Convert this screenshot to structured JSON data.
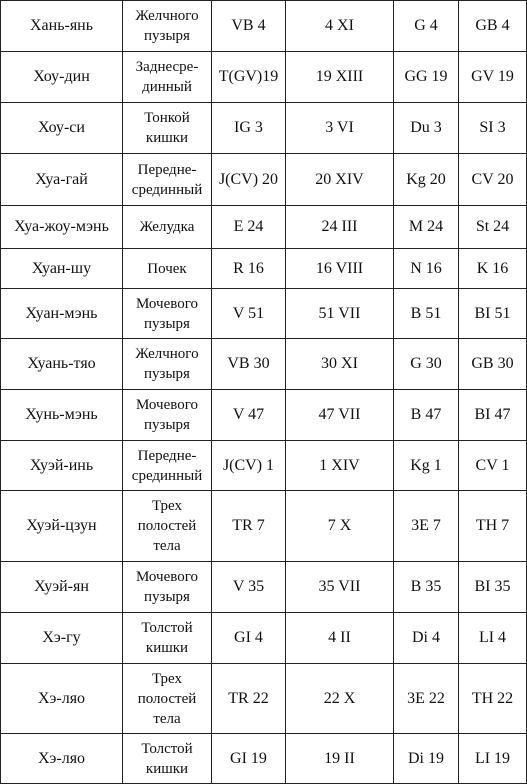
{
  "table": {
    "rows": [
      [
        "Хань-янь",
        "Желчного\nпузыря",
        "VB 4",
        "4 XI",
        "G 4",
        "GB 4"
      ],
      [
        "Хоу-дин",
        "Заднесре-\nдинный",
        "T(GV)19",
        "19 XIII",
        "GG 19",
        "GV 19"
      ],
      [
        "Хоу-си",
        "Тонкой\nкишки",
        "IG 3",
        "3 VI",
        "Du 3",
        "SI 3"
      ],
      [
        "Хуа-гай",
        "Передне-\nсрединный",
        "J(CV) 20",
        "20 XIV",
        "Kg 20",
        "CV 20"
      ],
      [
        "Хуа-жоу-мэнь",
        "Желудка",
        "E 24",
        "24 III",
        "M 24",
        "St 24"
      ],
      [
        "Хуан-шу",
        "Почек",
        "R 16",
        "16 VIII",
        "N 16",
        "K 16"
      ],
      [
        "Хуан-мэнь",
        "Мочевого\nпузыря",
        "V 51",
        "51 VII",
        "B 51",
        "BI 51"
      ],
      [
        "Хуань-тяо",
        "Желчного\nпузыря",
        "VB 30",
        "30 XI",
        "G 30",
        "GB 30"
      ],
      [
        "Хунь-мэнь",
        "Мочевого\nпузыря",
        "V 47",
        "47 VII",
        "B 47",
        "BI 47"
      ],
      [
        "Хуэй-инь",
        "Передне-\nсрединный",
        "J(CV) 1",
        "1 XIV",
        "Kg 1",
        "CV 1"
      ],
      [
        "Хуэй-цзун",
        "Трех\nполостей\nтела",
        "TR 7",
        "7 X",
        "3E 7",
        "TH 7"
      ],
      [
        "Хуэй-ян",
        "Мочевого\nпузыря",
        "V 35",
        "35 VII",
        "B 35",
        "BI 35"
      ],
      [
        "Хэ-гу",
        "Толстой\nкишки",
        "GI 4",
        "4 II",
        "Di 4",
        "LI 4"
      ],
      [
        "Хэ-ляо",
        "Трех\nполостей\nтела",
        "TR 22",
        "22 X",
        "3E 22",
        "TH 22"
      ],
      [
        "Хэ-ляо",
        "Толстой\nкишки",
        "GI 19",
        "19 II",
        "Di 19",
        "LI 19"
      ]
    ]
  }
}
